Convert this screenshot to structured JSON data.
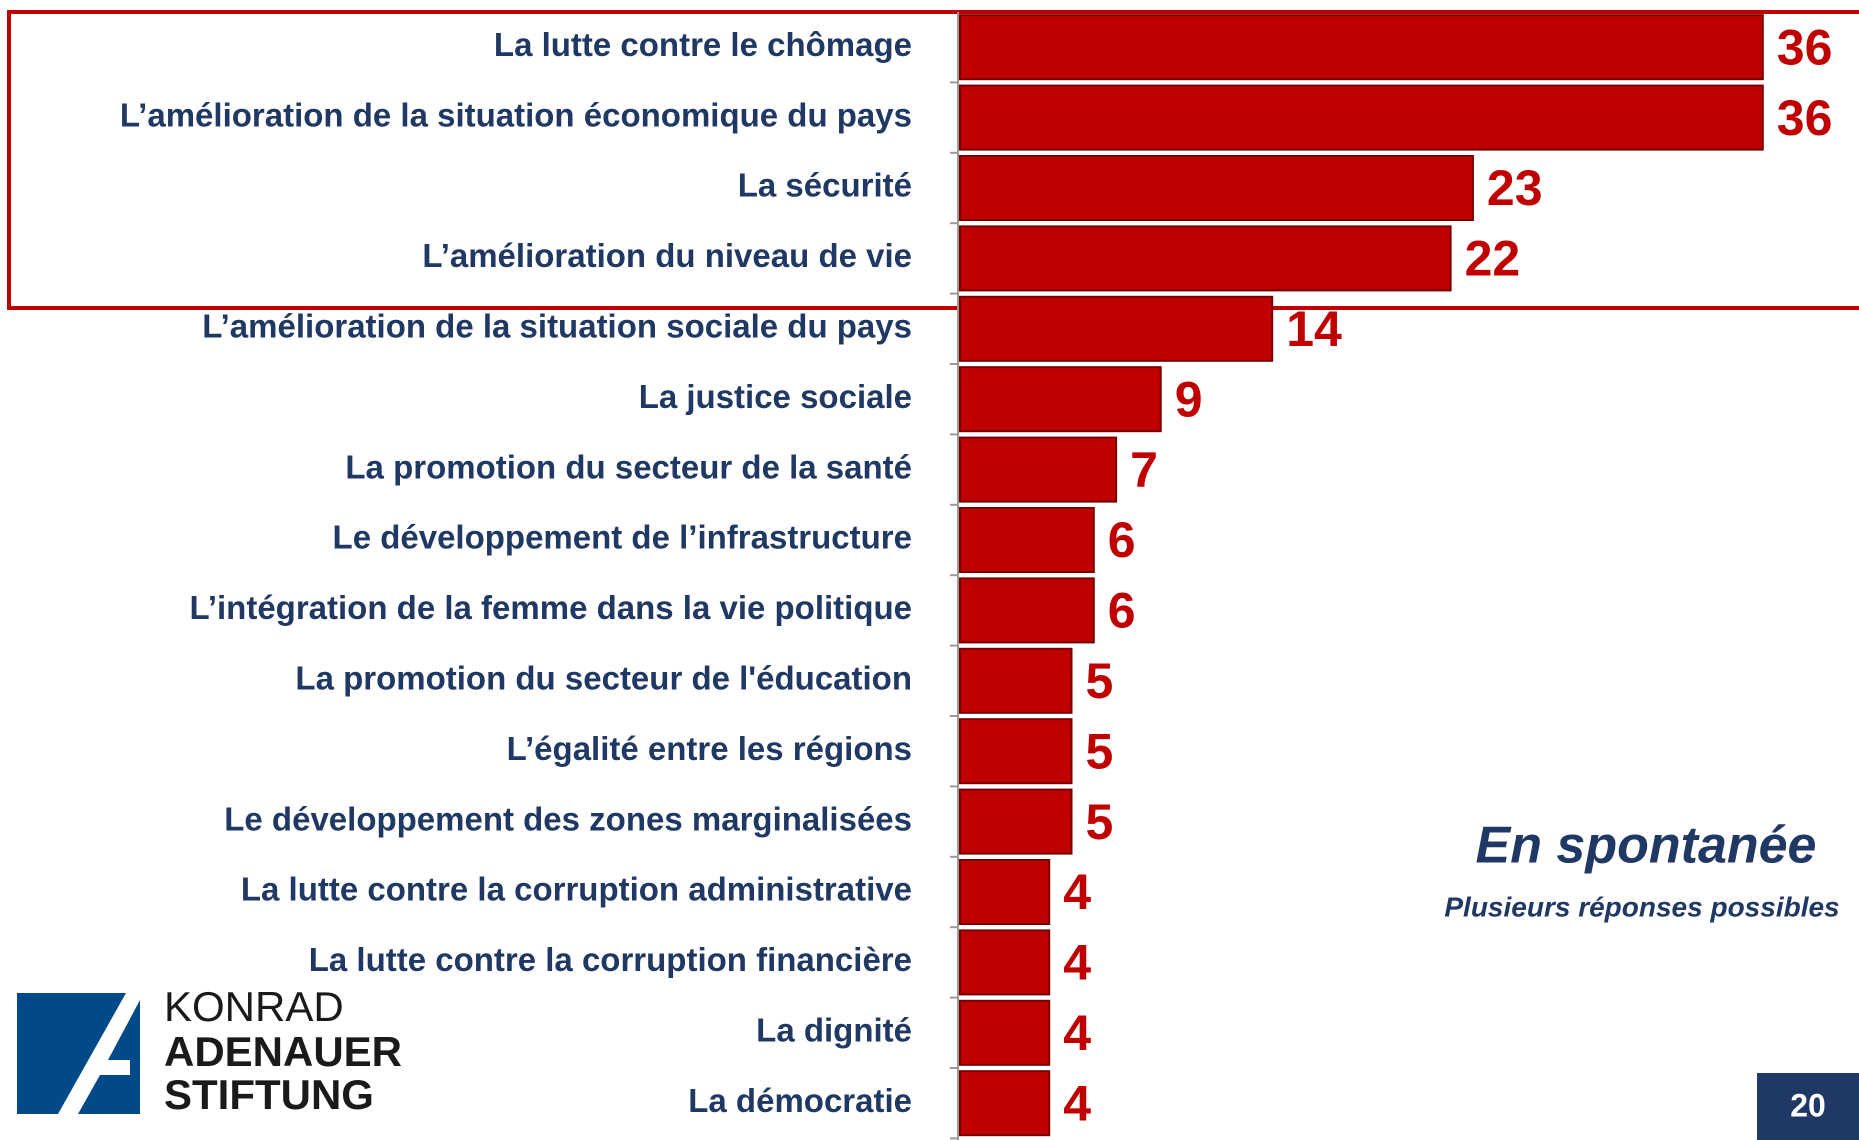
{
  "chart_data": {
    "type": "bar",
    "categories": [
      "La lutte contre le chômage",
      "L’amélioration de la situation économique du pays",
      "La sécurité",
      "L’amélioration du niveau de vie",
      "L’amélioration de la situation sociale du pays",
      "La justice sociale",
      "La promotion du secteur de la santé",
      "Le développement de l’infrastructure",
      "L’intégration de la femme dans la vie politique",
      "La promotion du secteur de l'éducation",
      "L’égalité entre les régions",
      "Le développement des zones marginalisées",
      "La lutte contre la corruption administrative",
      "La lutte contre la corruption financière",
      "La dignité",
      "La démocratie"
    ],
    "values": [
      36,
      36,
      23,
      22,
      14,
      9,
      7,
      6,
      6,
      5,
      5,
      5,
      4,
      4,
      4,
      4
    ],
    "color": "#c00000",
    "annotations": [
      "En spontanée",
      "Plusieurs réponses possibles"
    ]
  },
  "logo": [
    "KONRAD",
    "ADENAUER",
    "STIFTUNG"
  ],
  "page_number": "20"
}
